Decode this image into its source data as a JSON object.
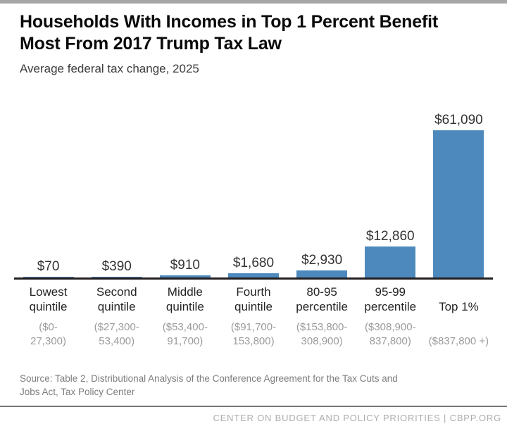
{
  "header": {
    "title": "Households With Incomes in Top 1 Percent Benefit Most From 2017 Trump Tax Law",
    "subtitle": "Average federal tax change, 2025"
  },
  "chart_data": {
    "type": "bar",
    "title": "Households With Incomes in Top 1 Percent Benefit Most From 2017 Trump Tax Law",
    "subtitle": "Average federal tax change, 2025",
    "categories": [
      "Lowest quintile",
      "Second quintile",
      "Middle quintile",
      "Fourth quintile",
      "80-95 percentile",
      "95-99 percentile",
      "Top 1%"
    ],
    "category_lines": [
      [
        "Lowest",
        "quintile"
      ],
      [
        "Second",
        "quintile"
      ],
      [
        "Middle",
        "quintile"
      ],
      [
        "Fourth",
        "quintile"
      ],
      [
        "80-95",
        "percentile"
      ],
      [
        "95-99",
        "percentile"
      ],
      [
        "Top 1%"
      ]
    ],
    "income_ranges": [
      "($0-27,300)",
      "($27,300-53,400)",
      "($53,400-91,700)",
      "($91,700-153,800)",
      "($153,800-308,900)",
      "($308,900-837,800)",
      "($837,800 +)"
    ],
    "income_range_lines": [
      [
        "($0-",
        "27,300)"
      ],
      [
        "($27,300-",
        "53,400)"
      ],
      [
        "($53,400-",
        "91,700)"
      ],
      [
        "($91,700-",
        "153,800)"
      ],
      [
        "($153,800-",
        "308,900)"
      ],
      [
        "($308,900-",
        "837,800)"
      ],
      [
        "($837,800 +)"
      ]
    ],
    "values": [
      70,
      390,
      910,
      1680,
      2930,
      12860,
      61090
    ],
    "value_labels": [
      "$70",
      "$390",
      "$910",
      "$1,680",
      "$2,930",
      "$12,860",
      "$61,090"
    ],
    "ylim": [
      0,
      61090
    ],
    "grid": false,
    "legend": false,
    "bar_color": "#4e89be",
    "axis_color": "#231f20"
  },
  "source": {
    "text": "Source: Table 2, Distributional Analysis of the Conference Agreement for the Tax Cuts and Jobs Act, Tax Policy Center",
    "lines": [
      "Source: Table 2, Distributional Analysis of the Conference Agreement for the Tax Cuts and",
      "Jobs Act, Tax Policy Center"
    ]
  },
  "footer": {
    "text": "CENTER ON BUDGET AND POLICY PRIORITIES | CBPP.ORG"
  },
  "colors": {
    "top_strip": "#a6a6a6",
    "divider": "#767676",
    "footer_text": "#adadad"
  }
}
